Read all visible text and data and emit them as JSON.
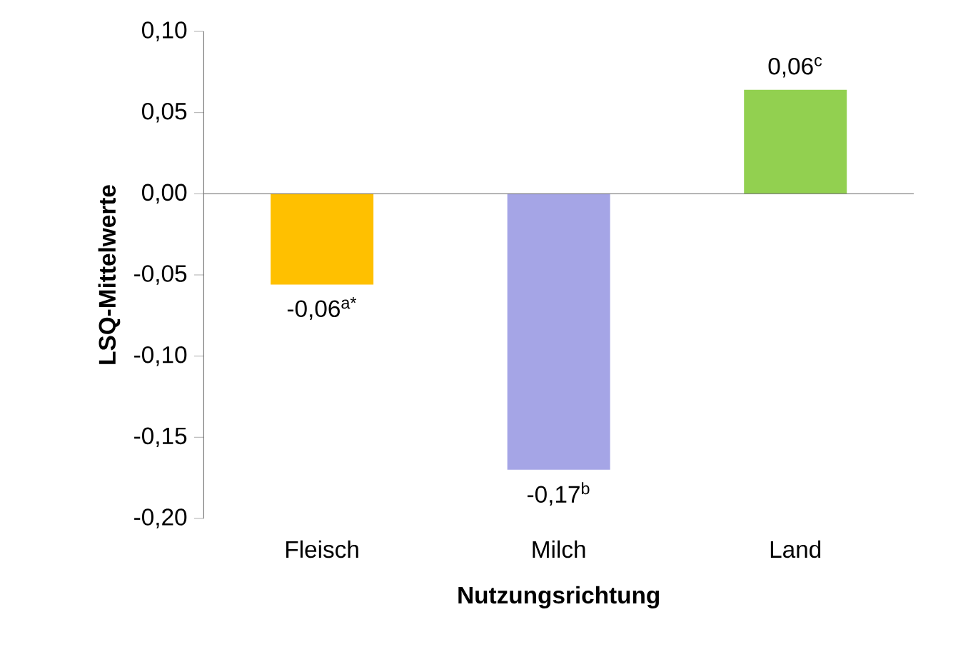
{
  "chart_data": {
    "type": "bar",
    "xlabel": "Nutzungsrichtung",
    "ylabel": "LSQ-Mittelwerte",
    "categories": [
      "Fleisch",
      "Milch",
      "Land"
    ],
    "values": [
      -0.056,
      -0.17,
      0.064
    ],
    "colors": [
      "#ffc000",
      "#a5a5e6",
      "#92d050"
    ],
    "value_labels": [
      "-0,06$^{a*}$",
      "-0,17$^{b}$",
      "0,06$^{c}$"
    ],
    "ylim": [
      -0.2,
      0.1
    ],
    "yticks": [
      {
        "value": -0.2,
        "label": "-0,20"
      },
      {
        "value": -0.15,
        "label": "-0,15"
      },
      {
        "value": -0.1,
        "label": "-0,10"
      },
      {
        "value": -0.05,
        "label": "-0,05"
      },
      {
        "value": 0.0,
        "label": "0,00"
      },
      {
        "value": 0.05,
        "label": "0,05"
      },
      {
        "value": 0.1,
        "label": "0,10"
      }
    ]
  }
}
